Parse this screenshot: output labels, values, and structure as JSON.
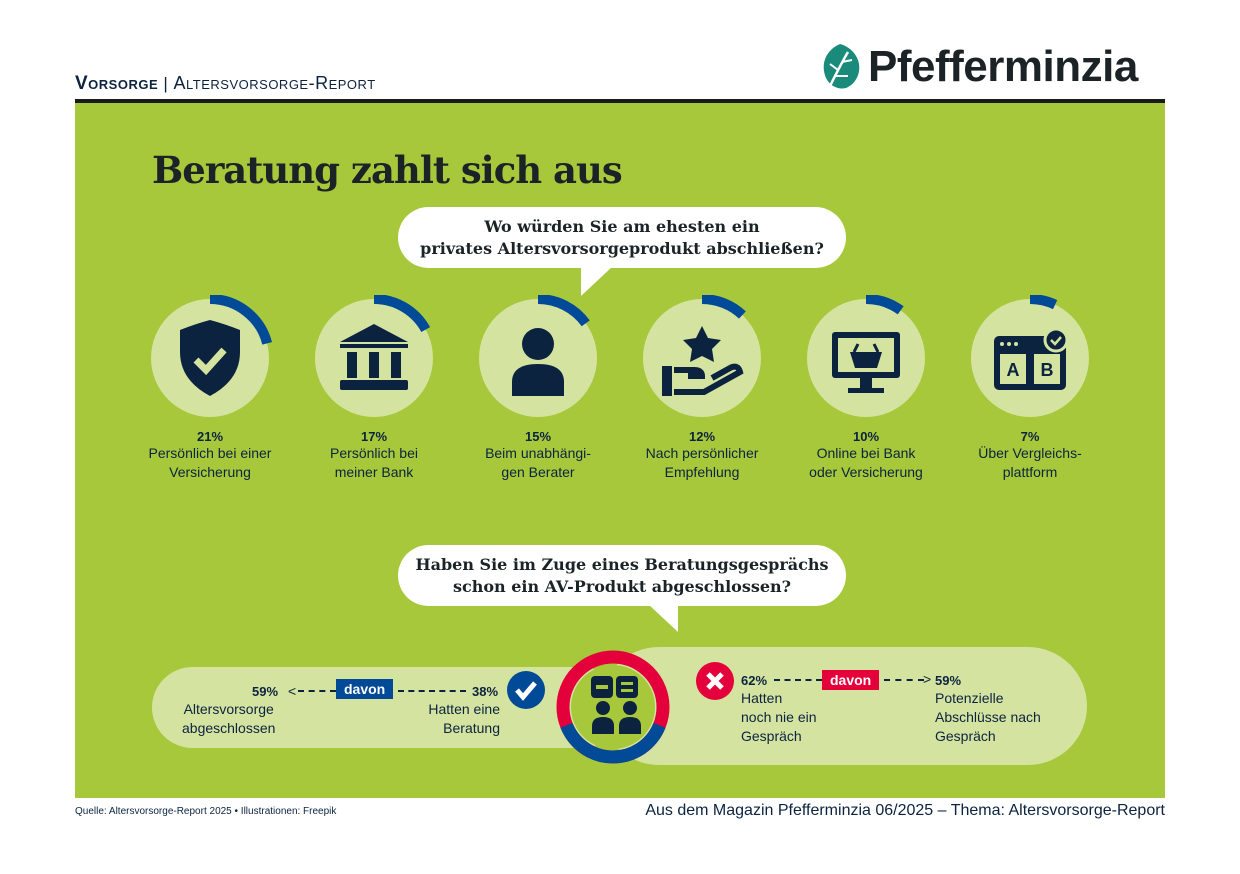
{
  "header": {
    "section": "Vorsorge",
    "separator": "|",
    "subsection": "Altersvorsorge-Report",
    "logo_text": "Pfefferminzia"
  },
  "title": "Beratung zahlt sich aus",
  "question1": {
    "line1": "Wo würden Sie am ehesten ein",
    "line2": "privates Altersvorsorgeprodukt abschließen?"
  },
  "chart_data": {
    "type": "pie",
    "items": [
      {
        "pct": "21%",
        "value": 21,
        "label1": "Persönlich bei einer",
        "label2": "Versicherung",
        "icon": "shield-check-icon"
      },
      {
        "pct": "17%",
        "value": 17,
        "label1": "Persönlich bei",
        "label2": "meiner Bank",
        "icon": "bank-icon"
      },
      {
        "pct": "15%",
        "value": 15,
        "label1": "Beim unabhängi-",
        "label2": "gen Berater",
        "icon": "person-icon"
      },
      {
        "pct": "12%",
        "value": 12,
        "label1": "Nach persönlicher",
        "label2": "Empfehlung",
        "icon": "hand-star-icon"
      },
      {
        "pct": "10%",
        "value": 10,
        "label1": "Online bei Bank",
        "label2": "oder Versicherung",
        "icon": "monitor-basket-icon"
      },
      {
        "pct": "7%",
        "value": 7,
        "label1": "Über Vergleichs-",
        "label2": "plattform",
        "icon": "browser-ab-icon"
      }
    ],
    "donut": {
      "yes": 38,
      "no": 62
    }
  },
  "question2": {
    "line1": "Haben Sie im Zuge eines Beratungsgesprächs",
    "line2": "schon ein AV-Produkt abgeschlossen?"
  },
  "yes": {
    "pct": "38%",
    "label1": "Hatten eine",
    "label2": "Beratung",
    "davon": "davon",
    "sub_pct": "59%",
    "sub1": "Altersvorsorge",
    "sub2": "abgeschlossen"
  },
  "no": {
    "pct": "62%",
    "label1": "Hatten",
    "label2": "noch nie ein",
    "label3": "Gespräch",
    "davon": "davon",
    "sub_pct": "59%",
    "sub1": "Potenzielle",
    "sub2": "Abschlüsse nach",
    "sub3": "Gespräch"
  },
  "colors": {
    "green": "#a6c83a",
    "light": "#d4e3a0",
    "navy": "#0c2340",
    "blue": "#004a98",
    "red": "#e4003a"
  },
  "footer": {
    "source": "Quelle: Altersvorsorge-Report 2025 • Illustrationen: Freepik",
    "magazine": "Aus dem Magazin Pfefferminzia 06/2025 – Thema: Altersvorsorge-Report"
  }
}
